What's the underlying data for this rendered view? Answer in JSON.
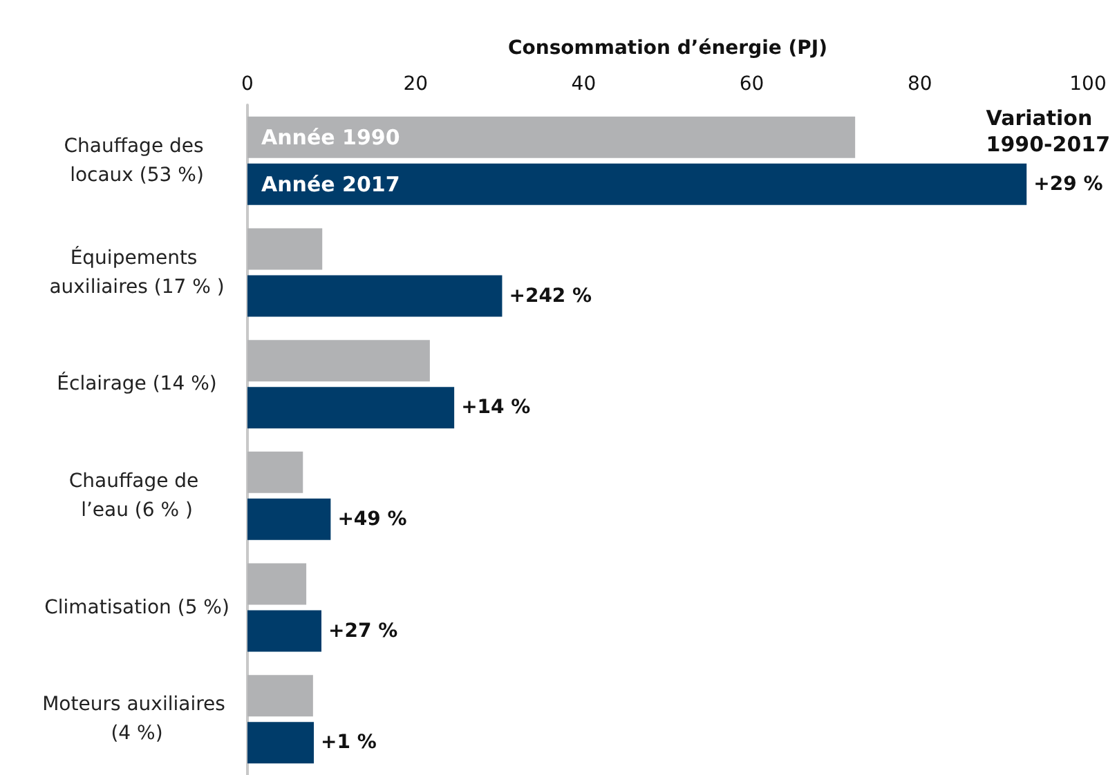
{
  "chart_data": {
    "type": "bar",
    "orientation": "horizontal",
    "xlabel": "Consommation d’énergie (PJ)",
    "categories": [
      "Chauffage des locaux (53 %)",
      "Équipements auxiliaires (17 % )",
      "Éclairage (14 %)",
      "Chauffage de l’eau (6 % )",
      "Climatisation (5 %)",
      "Moteurs auxiliaires (4 %)"
    ],
    "series": [
      {
        "name": "Année 1990",
        "color": "#b1b2b4",
        "values": [
          72.3,
          8.9,
          21.7,
          6.6,
          7.0,
          7.8
        ]
      },
      {
        "name": "Année 2017",
        "color": "#003c6a",
        "values": [
          92.7,
          30.3,
          24.6,
          9.9,
          8.8,
          7.9
        ]
      }
    ],
    "annotations": [
      "Variation 1990-2017",
      {
        "text": "+29 %",
        "x": 92.7,
        "y": "Chauffage des locaux (53 %)"
      },
      {
        "text": "+242 %",
        "x": 30.3,
        "y": "Équipements auxiliaires (17 % )"
      },
      {
        "text": "+14 %",
        "x": 24.6,
        "y": "Éclairage (14 %)"
      },
      {
        "text": "+49 %",
        "x": 9.9,
        "y": "Chauffage de l’eau (6 % )"
      },
      {
        "text": "+27 %",
        "x": 8.8,
        "y": "Climatisation (5 %)"
      },
      {
        "text": "+1 %",
        "x": 7.9,
        "y": "Moteurs auxiliaires (4 %)"
      }
    ],
    "xlim": [
      0,
      100
    ],
    "xticks": [
      0,
      20,
      40,
      60,
      80,
      100
    ],
    "grid": false,
    "legend": false
  }
}
